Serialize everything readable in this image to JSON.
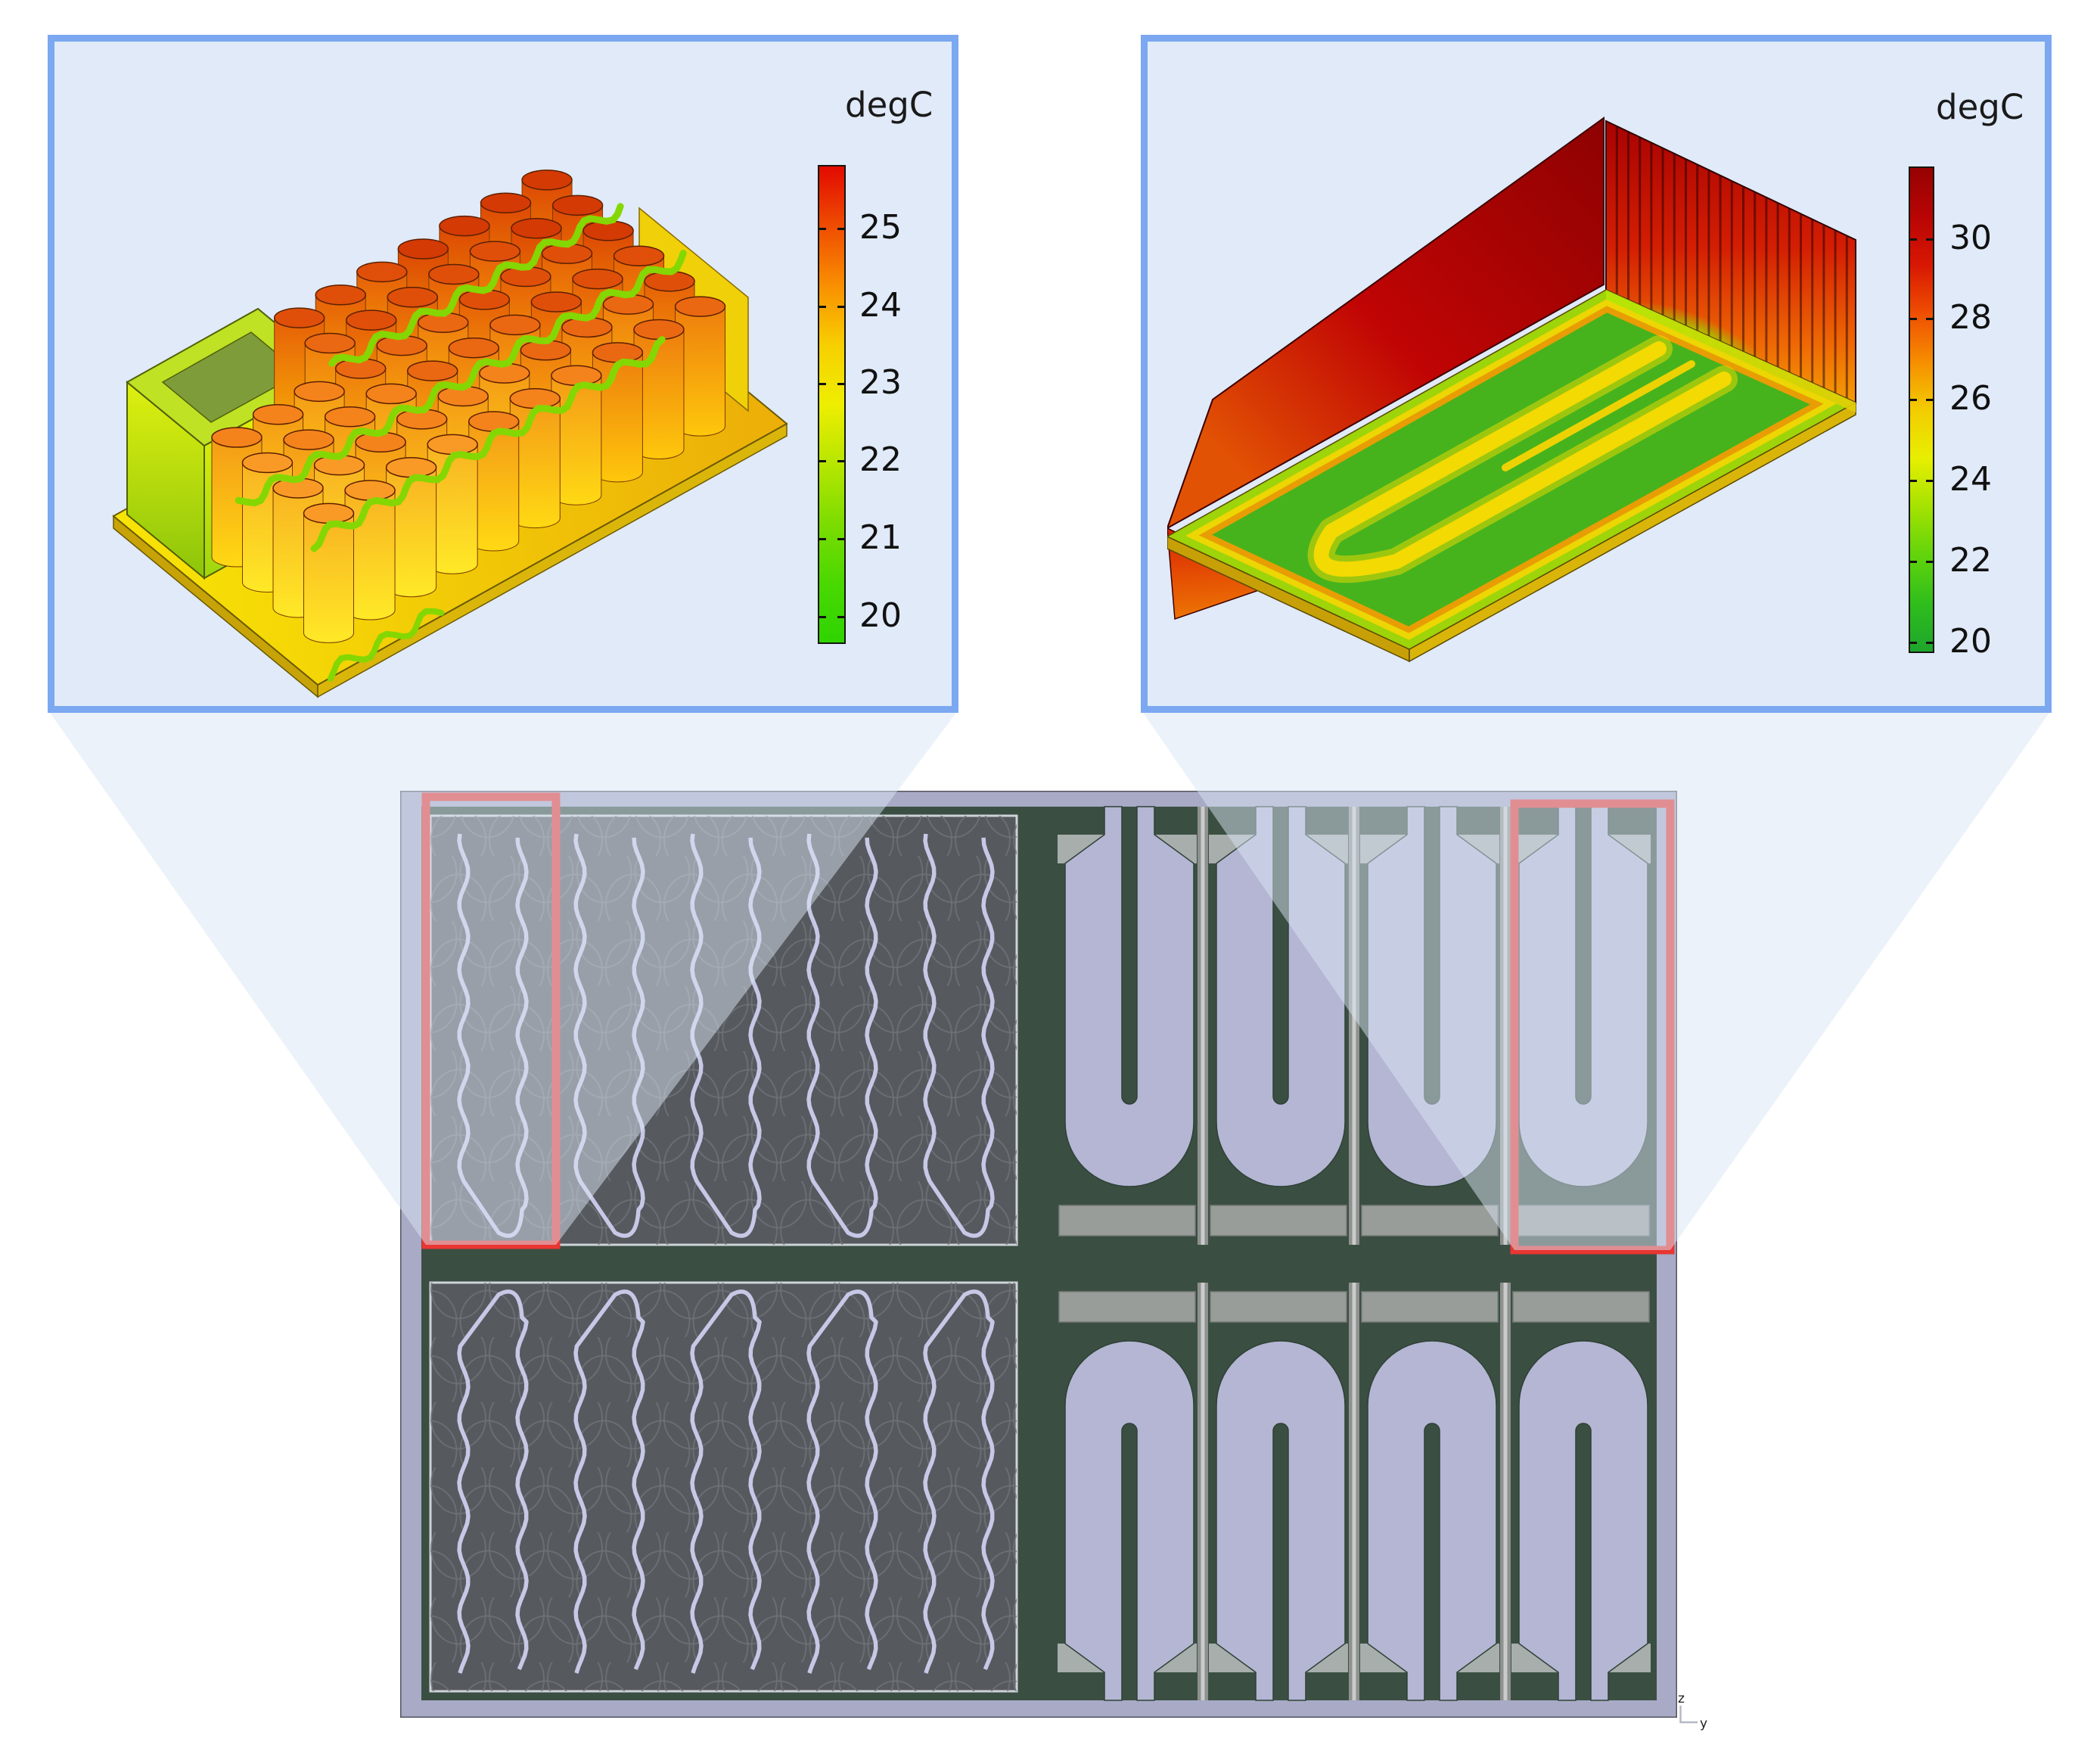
{
  "figure": {
    "background": "#ffffff",
    "description": "Thermal simulation figure: two 3D detail views with temperature colorbars above a top view of a battery pack with cooling plates"
  },
  "insets": [
    {
      "id": "battery-module-thermal-detail",
      "unit_label": "degC",
      "panel": {
        "border_color": "#7ba8f0",
        "background": "#e0eaf8"
      },
      "colorbar": {
        "ticks": [
          "25",
          "24",
          "23",
          "22",
          "21",
          "20"
        ],
        "tick_values": [
          25,
          24,
          23,
          22,
          21,
          20
        ],
        "range_top": 25.8,
        "range_bottom": 19.7,
        "gradient": [
          "#e20a00",
          "#ef4c00",
          "#f98f00",
          "#f7cf00",
          "#eeee00",
          "#b7e600",
          "#7cdc00",
          "#4ad800",
          "#2fd400"
        ]
      }
    },
    {
      "id": "cold-plate-thermal-detail",
      "unit_label": "degC",
      "panel": {
        "border_color": "#7ba8f0",
        "background": "#e0eaf8"
      },
      "colorbar": {
        "ticks": [
          "30",
          "28",
          "26",
          "24",
          "22",
          "20"
        ],
        "tick_values": [
          30,
          28,
          26,
          24,
          22,
          20
        ],
        "range_top": 31.0,
        "range_bottom": 19.6,
        "gradient": [
          "#970202",
          "#b80404",
          "#d81703",
          "#ef4e02",
          "#f68d00",
          "#f3cc00",
          "#e8ef00",
          "#a5e200",
          "#62d40b",
          "#2fbe1c",
          "#1ea52c"
        ]
      }
    }
  ],
  "overview": {
    "highlight_color": "#e83632",
    "axis": {
      "vertical": "z",
      "horizontal": "y"
    },
    "palette": {
      "frame": "#a8aac6",
      "channel": "#b4b6d4",
      "module": "#56595e",
      "module_border": "#ced2d9",
      "cell_outline": "#6f7378",
      "serpentine": "#c6c8e6",
      "green": "#3a4f42",
      "shoulder": "#a7aeac",
      "rail": "#8e918f",
      "rail_line": "#c9cccb",
      "manifold": "#999d9a"
    }
  },
  "chart_data": [
    {
      "type": "heatmap",
      "colorbar_label": "degC",
      "tick_values": [
        25,
        24,
        23,
        22,
        21,
        20
      ],
      "axis_range": [
        19.7,
        25.8
      ],
      "legend_position": "right"
    },
    {
      "type": "heatmap",
      "colorbar_label": "degC",
      "tick_values": [
        30,
        28,
        26,
        24,
        22,
        20
      ],
      "axis_range": [
        19.6,
        31.0
      ],
      "legend_position": "right"
    }
  ]
}
